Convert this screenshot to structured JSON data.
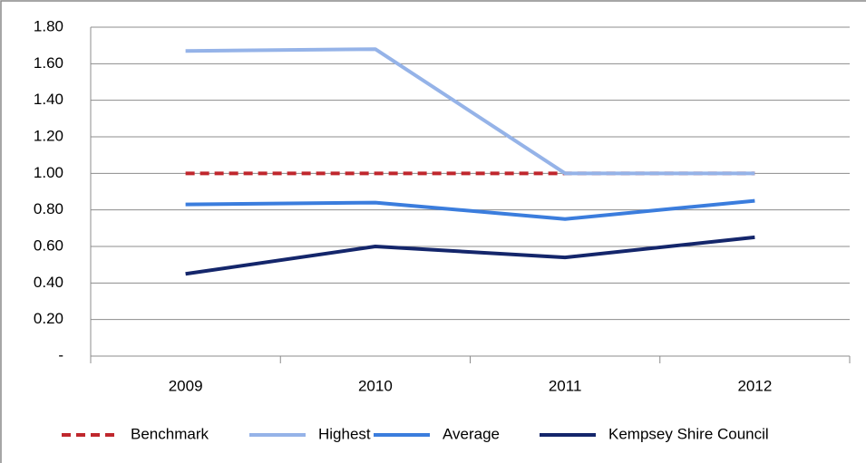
{
  "chart_data": {
    "type": "line",
    "categories": [
      "2009",
      "2010",
      "2011",
      "2012"
    ],
    "series": [
      {
        "name": "Benchmark",
        "color": "#c0272d",
        "dashed": true,
        "values": [
          1.0,
          1.0,
          1.0,
          1.0
        ]
      },
      {
        "name": "Highest",
        "color": "#95b3e8",
        "values": [
          1.67,
          1.68,
          1.0,
          1.0
        ]
      },
      {
        "name": "Average",
        "color": "#3b7ddd",
        "values": [
          0.83,
          0.84,
          0.75,
          0.85
        ]
      },
      {
        "name": "Kempsey Shire Council",
        "color": "#14266b",
        "values": [
          0.45,
          0.6,
          0.54,
          0.65
        ]
      }
    ],
    "ylim": [
      0,
      1.8
    ],
    "yticks": [
      {
        "value": 0,
        "label": "-"
      },
      {
        "value": 0.2,
        "label": "0.20"
      },
      {
        "value": 0.4,
        "label": "0.40"
      },
      {
        "value": 0.6,
        "label": "0.60"
      },
      {
        "value": 0.8,
        "label": "0.80"
      },
      {
        "value": 1.0,
        "label": "1.00"
      },
      {
        "value": 1.2,
        "label": "1.20"
      },
      {
        "value": 1.4,
        "label": "1.40"
      },
      {
        "value": 1.6,
        "label": "1.60"
      },
      {
        "value": 1.8,
        "label": "1.80"
      }
    ],
    "grid": true,
    "legend": "bottom"
  }
}
